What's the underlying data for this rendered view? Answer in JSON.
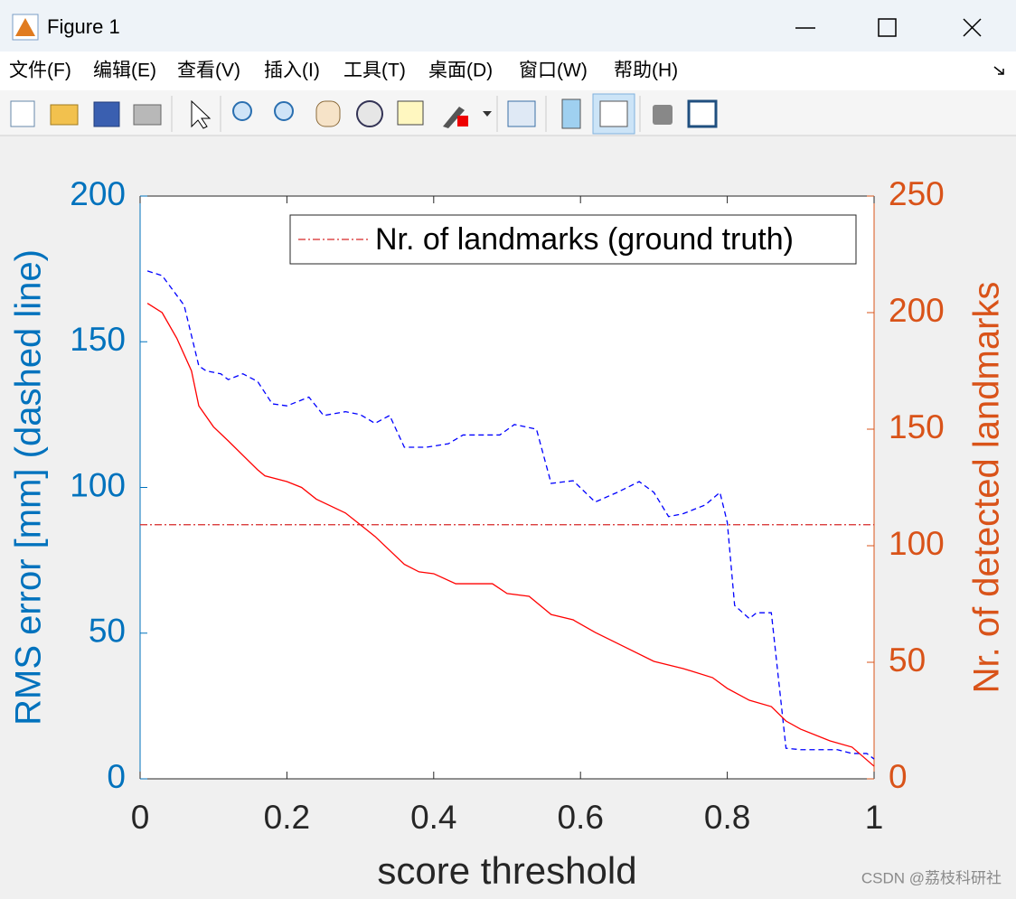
{
  "window": {
    "title": "Figure 1",
    "menu": [
      "文件(F)",
      "编辑(E)",
      "查看(V)",
      "插入(I)",
      "工具(T)",
      "桌面(D)",
      "窗口(W)",
      "帮助(H)"
    ],
    "watermark": "CSDN @荔枝科研社"
  },
  "chart_data": {
    "type": "line",
    "xlabel": "score threshold",
    "ylabel": "RMS error [mm] (dashed line)",
    "y2label": "Nr. of detected landmarks",
    "xlim": [
      0,
      1
    ],
    "xticks": [
      0,
      0.2,
      0.4,
      0.6,
      0.8,
      1
    ],
    "ylim": [
      0,
      200
    ],
    "yticks": [
      0,
      50,
      100,
      150,
      200
    ],
    "y2lim": [
      0,
      250
    ],
    "y2ticks": [
      0,
      50,
      100,
      150,
      200,
      250
    ],
    "y_color": "#0072bd",
    "y2_color": "#d95319",
    "legend": "upper right",
    "series": [
      {
        "color": "#0000ff",
        "line_style": "dashed",
        "x": [
          0.01,
          0.03,
          0.06,
          0.08,
          0.09,
          0.11,
          0.12,
          0.14,
          0.16,
          0.18,
          0.2,
          0.23,
          0.25,
          0.28,
          0.3,
          0.32,
          0.34,
          0.36,
          0.39,
          0.42,
          0.44,
          0.49,
          0.51,
          0.54,
          0.56,
          0.59,
          0.62,
          0.65,
          0.68,
          0.7,
          0.72,
          0.74,
          0.77,
          0.79,
          0.8,
          0.81,
          0.83,
          0.84,
          0.86,
          0.88,
          0.9,
          0.95,
          0.97,
          0.99,
          1
        ],
        "values": [
          174.3,
          172.7,
          162.5,
          141.7,
          140,
          139,
          137,
          139,
          136.4,
          128.7,
          128,
          131,
          124.7,
          126,
          125,
          122,
          124.7,
          113.8,
          113.8,
          115,
          118,
          118,
          121.6,
          120,
          101.4,
          102.3,
          95,
          98.3,
          102,
          98.3,
          90,
          91,
          94,
          98.3,
          88,
          59.5,
          55,
          57,
          57,
          10.5,
          10,
          10,
          8.7,
          8.7,
          6.8
        ]
      },
      {
        "color": "#ff0000",
        "line_style": "solid",
        "axis": "y2",
        "x": [
          0.01,
          0.03,
          0.05,
          0.07,
          0.08,
          0.1,
          0.12,
          0.16,
          0.17,
          0.2,
          0.22,
          0.24,
          0.28,
          0.3,
          0.32,
          0.36,
          0.38,
          0.4,
          0.43,
          0.48,
          0.5,
          0.53,
          0.56,
          0.59,
          0.62,
          0.66,
          0.7,
          0.74,
          0.78,
          0.8,
          0.83,
          0.86,
          0.88,
          0.9,
          0.94,
          0.97,
          1
        ],
        "values": [
          204,
          200,
          189,
          175,
          160,
          151,
          145,
          132.6,
          130,
          127.5,
          125,
          120,
          114,
          109,
          104,
          92,
          88.8,
          88,
          83.7,
          83.7,
          79.5,
          78.3,
          70.5,
          68.2,
          62.8,
          56.6,
          50.4,
          47.3,
          43.4,
          38.8,
          33.7,
          31,
          24.8,
          21.3,
          16.3,
          13.6,
          5.4
        ]
      },
      {
        "name": "Nr. of landmarks (ground truth)",
        "color": "#d62728",
        "line_style": "dashdot",
        "axis": "y2",
        "x": [
          0,
          1
        ],
        "values": [
          109,
          109
        ]
      }
    ]
  }
}
